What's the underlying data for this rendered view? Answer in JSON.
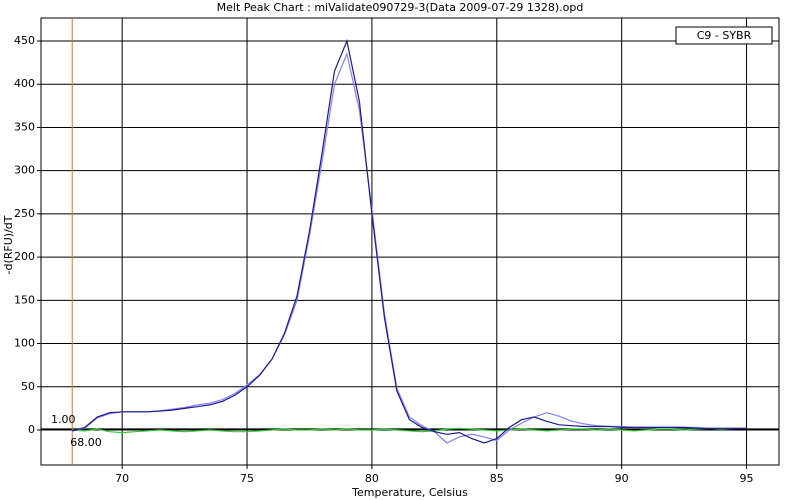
{
  "chart_data": {
    "type": "line",
    "title": "Melt Peak Chart : miValidate090729-3(Data 2009-07-29 1328).opd",
    "x_label": "Temperature, Celsius",
    "y_label": "-d(RFU)/dT",
    "legend": "C9 - SYBR",
    "grid": true,
    "xlim": [
      66.75,
      96.3
    ],
    "ylim": [
      -40.5,
      476.6
    ],
    "xticks": [
      70,
      75,
      80,
      85,
      90,
      95
    ],
    "yticks": [
      0,
      50,
      100,
      150,
      200,
      250,
      300,
      350,
      400,
      450
    ],
    "marker": {
      "color": "#e07020",
      "x": {
        "value": 68,
        "label": "68.00"
      },
      "y": {
        "value": 1,
        "label": "1.00"
      }
    },
    "x": [
      68,
      68.5,
      69,
      69.5,
      70,
      70.5,
      71,
      71.5,
      72,
      72.5,
      73,
      73.5,
      74,
      74.5,
      75,
      75.5,
      76,
      76.5,
      77,
      77.5,
      78,
      78.5,
      79,
      79.5,
      80,
      80.5,
      81,
      81.5,
      82,
      82.5,
      83,
      83.5,
      84,
      84.5,
      85,
      85.5,
      86,
      86.5,
      87,
      87.5,
      88,
      88.5,
      89,
      89.5,
      90,
      90.5,
      91,
      91.5,
      92,
      92.5,
      93,
      93.5,
      94,
      94.5,
      95
    ],
    "series": [
      {
        "color": "#33cc33",
        "values": [
          0,
          -1,
          1,
          -2,
          -3,
          -2,
          -1,
          0,
          -1,
          -2,
          -1,
          0,
          -1,
          -2,
          -2,
          -1,
          0,
          1,
          0,
          0,
          1,
          0,
          1,
          0,
          0,
          1,
          0,
          -1,
          -2,
          -1,
          1,
          2,
          1,
          0,
          -1,
          0,
          1,
          0,
          -1,
          0,
          1,
          1,
          0,
          1,
          0,
          -1,
          0,
          1,
          1,
          0,
          1,
          2,
          1,
          2,
          2
        ]
      },
      {
        "color": "#8080ff",
        "values": [
          -1,
          2,
          14,
          19,
          21,
          21,
          21,
          22,
          24,
          26,
          29,
          31,
          35,
          42,
          52,
          64,
          82,
          110,
          150,
          225,
          310,
          400,
          435,
          370,
          255,
          135,
          48,
          15,
          5,
          -2,
          -15,
          -8,
          -5,
          -8,
          -12,
          0,
          8,
          15,
          20,
          16,
          10,
          7,
          5,
          4,
          4,
          3,
          3,
          3,
          3,
          3,
          3,
          2,
          2,
          2,
          2
        ]
      },
      {
        "color": "#1c1c8c",
        "values": [
          -1,
          3,
          15,
          20,
          21,
          21,
          21,
          22,
          23,
          25,
          27,
          29,
          33,
          40,
          50,
          63,
          82,
          112,
          155,
          230,
          320,
          415,
          450,
          380,
          250,
          130,
          45,
          12,
          3,
          -2,
          -5,
          -3,
          -10,
          -15,
          -10,
          3,
          12,
          15,
          10,
          6,
          5,
          4,
          4,
          4,
          3,
          3,
          3,
          3,
          3,
          3,
          2,
          2,
          2,
          2,
          2
        ]
      }
    ]
  }
}
